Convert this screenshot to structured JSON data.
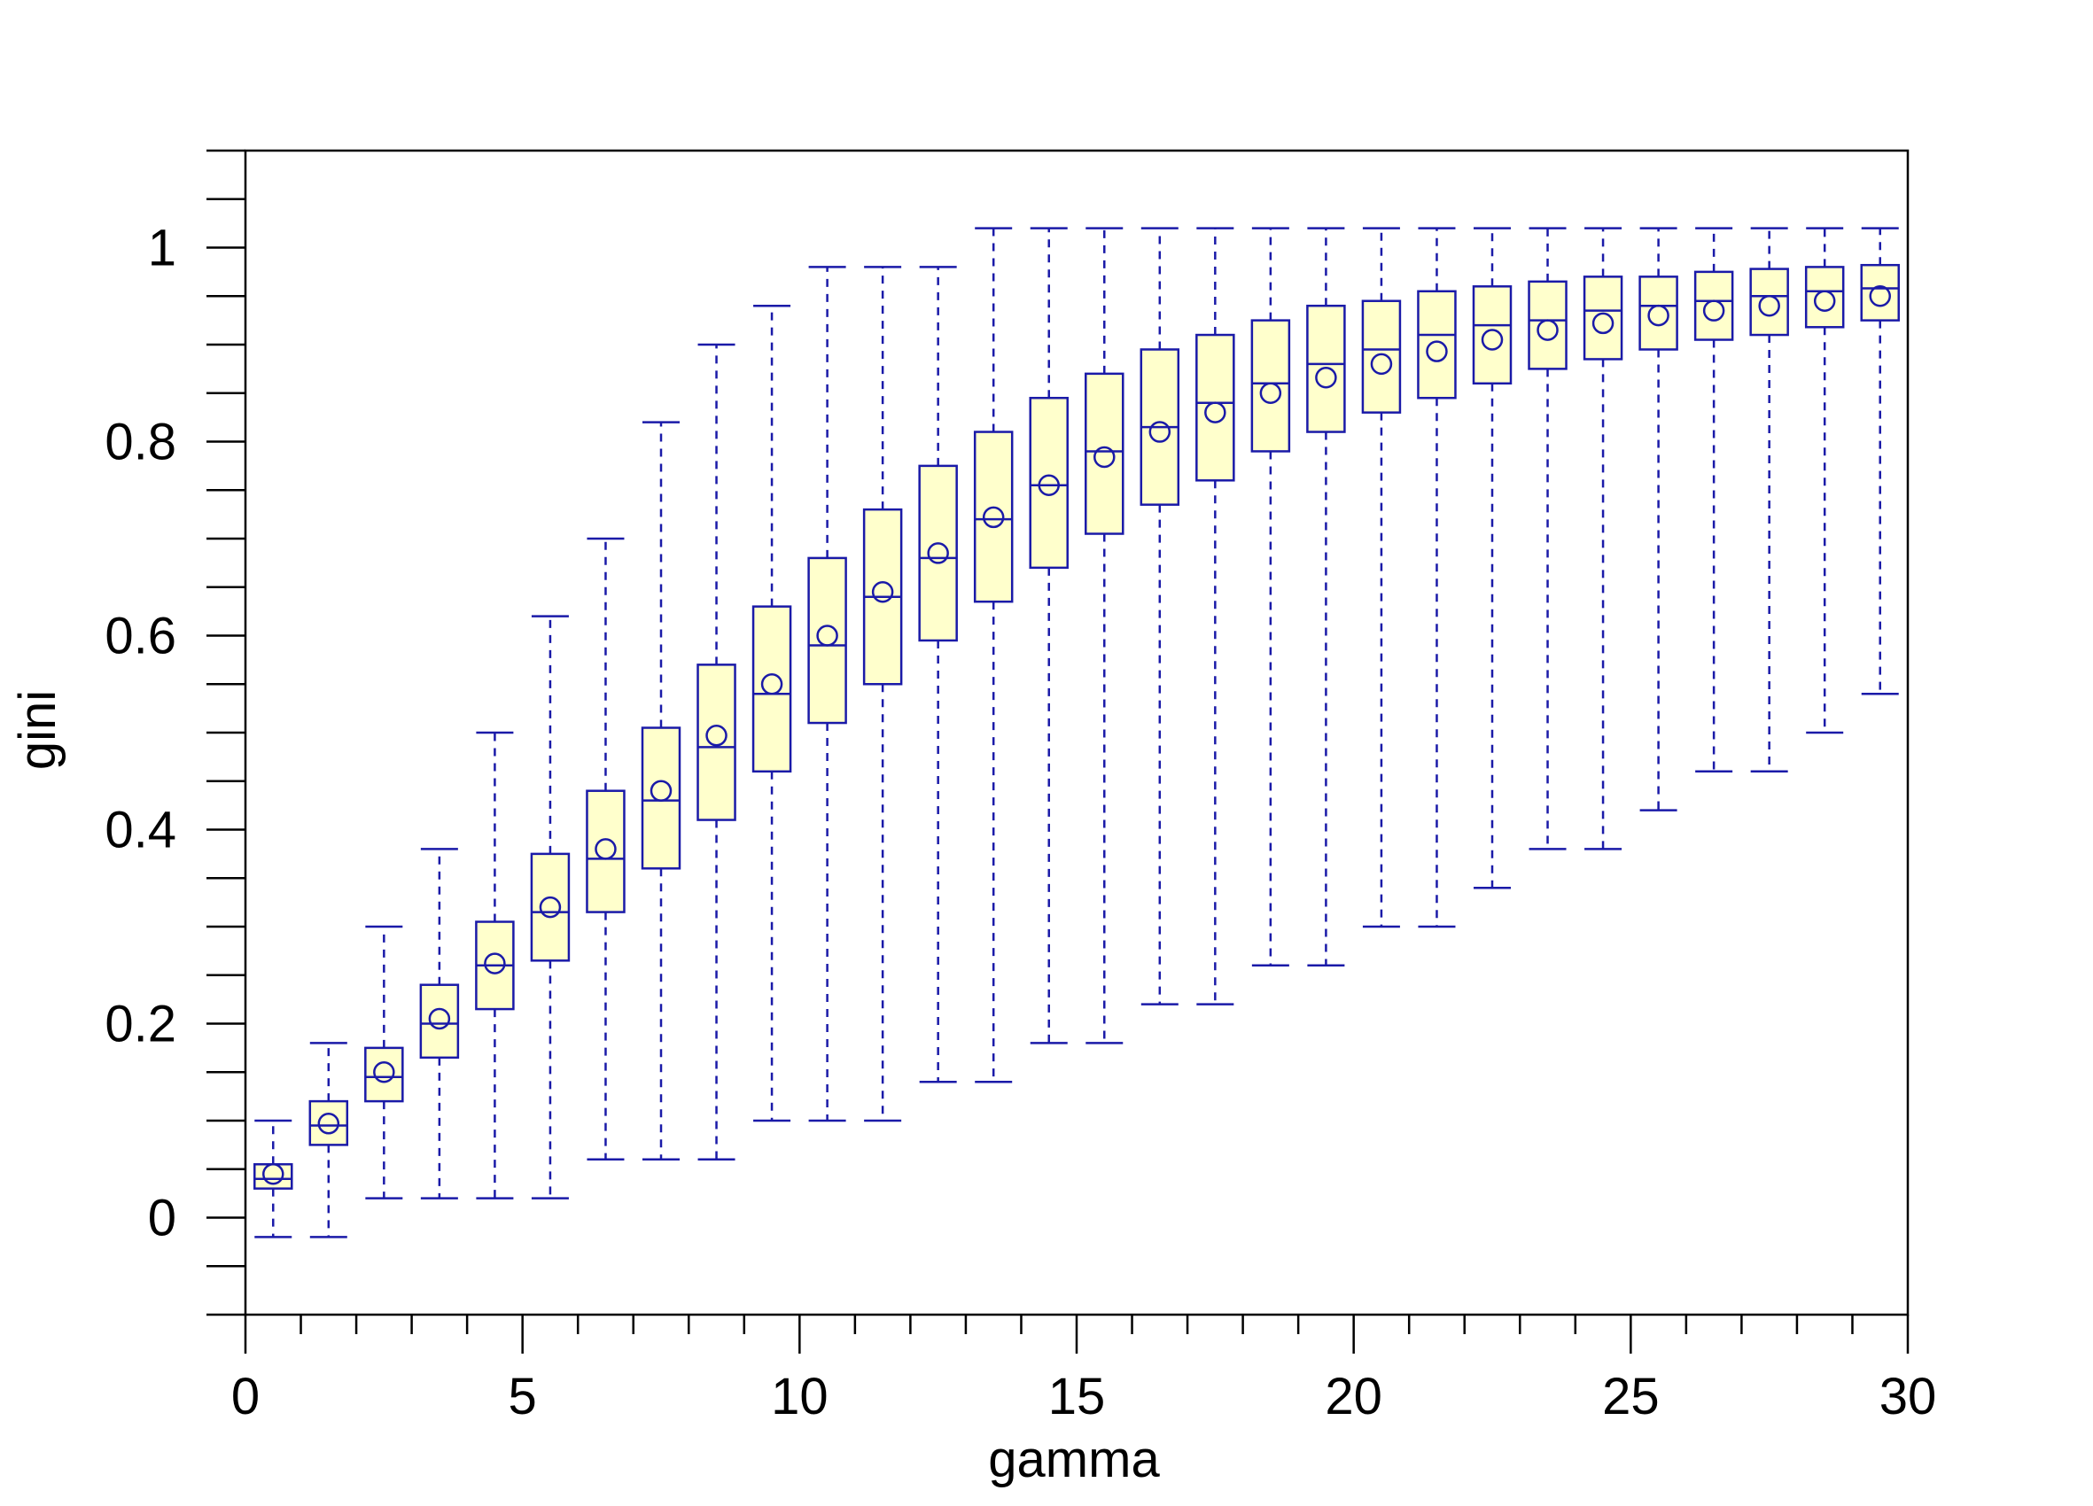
{
  "chart_data": {
    "type": "boxplot",
    "xlabel": "gamma",
    "ylabel": "gini",
    "xlim": [
      0,
      30
    ],
    "ylim": [
      -0.1,
      1.1
    ],
    "x_ticks": [
      0,
      5,
      10,
      15,
      20,
      25,
      30
    ],
    "x_tick_labels": [
      "0",
      "5",
      "10",
      "15",
      "20",
      "25",
      "30"
    ],
    "y_ticks": [
      0,
      0.2,
      0.4,
      0.6,
      0.8,
      1
    ],
    "y_tick_labels": [
      "0",
      "0.2",
      "0.4",
      "0.6",
      "0.8",
      "1"
    ],
    "grid": false,
    "legend": "none",
    "colors": {
      "box_fill": "#ffffcc",
      "stroke": "#1a1aa8",
      "axis": "#000000"
    },
    "boxes": [
      {
        "x": 0.5,
        "lower_whisker": -0.02,
        "q1": 0.03,
        "median": 0.04,
        "q3": 0.055,
        "upper_whisker": 0.1,
        "mean": 0.045
      },
      {
        "x": 1.5,
        "lower_whisker": -0.02,
        "q1": 0.075,
        "median": 0.095,
        "q3": 0.12,
        "upper_whisker": 0.18,
        "mean": 0.097
      },
      {
        "x": 2.5,
        "lower_whisker": 0.02,
        "q1": 0.12,
        "median": 0.145,
        "q3": 0.175,
        "upper_whisker": 0.3,
        "mean": 0.15
      },
      {
        "x": 3.5,
        "lower_whisker": 0.02,
        "q1": 0.165,
        "median": 0.2,
        "q3": 0.24,
        "upper_whisker": 0.38,
        "mean": 0.205
      },
      {
        "x": 4.5,
        "lower_whisker": 0.02,
        "q1": 0.215,
        "median": 0.26,
        "q3": 0.305,
        "upper_whisker": 0.5,
        "mean": 0.262
      },
      {
        "x": 5.5,
        "lower_whisker": 0.02,
        "q1": 0.265,
        "median": 0.315,
        "q3": 0.375,
        "upper_whisker": 0.62,
        "mean": 0.32
      },
      {
        "x": 6.5,
        "lower_whisker": 0.06,
        "q1": 0.315,
        "median": 0.37,
        "q3": 0.44,
        "upper_whisker": 0.7,
        "mean": 0.38
      },
      {
        "x": 7.5,
        "lower_whisker": 0.06,
        "q1": 0.36,
        "median": 0.43,
        "q3": 0.505,
        "upper_whisker": 0.82,
        "mean": 0.44
      },
      {
        "x": 8.5,
        "lower_whisker": 0.06,
        "q1": 0.41,
        "median": 0.485,
        "q3": 0.57,
        "upper_whisker": 0.9,
        "mean": 0.497
      },
      {
        "x": 9.5,
        "lower_whisker": 0.1,
        "q1": 0.46,
        "median": 0.54,
        "q3": 0.63,
        "upper_whisker": 0.94,
        "mean": 0.55
      },
      {
        "x": 10.5,
        "lower_whisker": 0.1,
        "q1": 0.51,
        "median": 0.59,
        "q3": 0.68,
        "upper_whisker": 0.98,
        "mean": 0.6
      },
      {
        "x": 11.5,
        "lower_whisker": 0.1,
        "q1": 0.55,
        "median": 0.64,
        "q3": 0.73,
        "upper_whisker": 0.98,
        "mean": 0.645
      },
      {
        "x": 12.5,
        "lower_whisker": 0.14,
        "q1": 0.595,
        "median": 0.68,
        "q3": 0.775,
        "upper_whisker": 0.98,
        "mean": 0.685
      },
      {
        "x": 13.5,
        "lower_whisker": 0.14,
        "q1": 0.635,
        "median": 0.72,
        "q3": 0.81,
        "upper_whisker": 1.02,
        "mean": 0.722
      },
      {
        "x": 14.5,
        "lower_whisker": 0.18,
        "q1": 0.67,
        "median": 0.755,
        "q3": 0.845,
        "upper_whisker": 1.02,
        "mean": 0.755
      },
      {
        "x": 15.5,
        "lower_whisker": 0.18,
        "q1": 0.705,
        "median": 0.79,
        "q3": 0.87,
        "upper_whisker": 1.02,
        "mean": 0.784
      },
      {
        "x": 16.5,
        "lower_whisker": 0.22,
        "q1": 0.735,
        "median": 0.815,
        "q3": 0.895,
        "upper_whisker": 1.02,
        "mean": 0.81
      },
      {
        "x": 17.5,
        "lower_whisker": 0.22,
        "q1": 0.76,
        "median": 0.84,
        "q3": 0.91,
        "upper_whisker": 1.02,
        "mean": 0.83
      },
      {
        "x": 18.5,
        "lower_whisker": 0.26,
        "q1": 0.79,
        "median": 0.86,
        "q3": 0.925,
        "upper_whisker": 1.02,
        "mean": 0.85
      },
      {
        "x": 19.5,
        "lower_whisker": 0.26,
        "q1": 0.81,
        "median": 0.88,
        "q3": 0.94,
        "upper_whisker": 1.02,
        "mean": 0.866
      },
      {
        "x": 20.5,
        "lower_whisker": 0.3,
        "q1": 0.83,
        "median": 0.895,
        "q3": 0.945,
        "upper_whisker": 1.02,
        "mean": 0.88
      },
      {
        "x": 21.5,
        "lower_whisker": 0.3,
        "q1": 0.845,
        "median": 0.91,
        "q3": 0.955,
        "upper_whisker": 1.02,
        "mean": 0.893
      },
      {
        "x": 22.5,
        "lower_whisker": 0.34,
        "q1": 0.86,
        "median": 0.92,
        "q3": 0.96,
        "upper_whisker": 1.02,
        "mean": 0.905
      },
      {
        "x": 23.5,
        "lower_whisker": 0.38,
        "q1": 0.875,
        "median": 0.925,
        "q3": 0.965,
        "upper_whisker": 1.02,
        "mean": 0.915
      },
      {
        "x": 24.5,
        "lower_whisker": 0.38,
        "q1": 0.885,
        "median": 0.935,
        "q3": 0.97,
        "upper_whisker": 1.02,
        "mean": 0.922
      },
      {
        "x": 25.5,
        "lower_whisker": 0.42,
        "q1": 0.895,
        "median": 0.94,
        "q3": 0.97,
        "upper_whisker": 1.02,
        "mean": 0.93
      },
      {
        "x": 26.5,
        "lower_whisker": 0.46,
        "q1": 0.905,
        "median": 0.945,
        "q3": 0.975,
        "upper_whisker": 1.02,
        "mean": 0.935
      },
      {
        "x": 27.5,
        "lower_whisker": 0.46,
        "q1": 0.91,
        "median": 0.95,
        "q3": 0.978,
        "upper_whisker": 1.02,
        "mean": 0.94
      },
      {
        "x": 28.5,
        "lower_whisker": 0.5,
        "q1": 0.918,
        "median": 0.955,
        "q3": 0.98,
        "upper_whisker": 1.02,
        "mean": 0.945
      },
      {
        "x": 29.5,
        "lower_whisker": 0.54,
        "q1": 0.925,
        "median": 0.958,
        "q3": 0.982,
        "upper_whisker": 1.02,
        "mean": 0.95
      }
    ]
  }
}
